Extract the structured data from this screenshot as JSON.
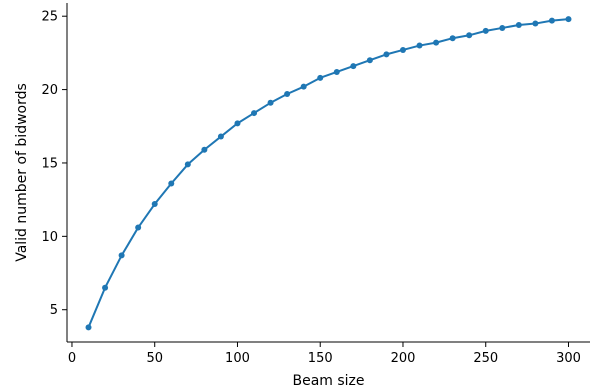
{
  "chart_data": {
    "type": "line",
    "title": "",
    "xlabel": "Beam size",
    "ylabel": "Valid number of bidwords",
    "xlim": [
      -3,
      313
    ],
    "ylim": [
      2.8,
      25.9
    ],
    "xticks": [
      0,
      50,
      100,
      150,
      200,
      250,
      300
    ],
    "yticks": [
      5,
      10,
      15,
      20,
      25
    ],
    "grid": false,
    "legend": "none",
    "series": [
      {
        "color": "#1f77b4",
        "marker": "circle",
        "x": [
          10,
          20,
          30,
          40,
          50,
          60,
          70,
          80,
          90,
          100,
          110,
          120,
          130,
          140,
          150,
          160,
          170,
          180,
          190,
          200,
          210,
          220,
          230,
          240,
          250,
          260,
          270,
          280,
          290,
          300
        ],
        "y": [
          3.8,
          6.5,
          8.7,
          10.6,
          12.2,
          13.6,
          14.9,
          15.9,
          16.8,
          17.7,
          18.4,
          19.1,
          19.7,
          20.2,
          20.8,
          21.2,
          21.6,
          22.0,
          22.4,
          22.7,
          23.0,
          23.2,
          23.5,
          23.7,
          24.0,
          24.2,
          24.4,
          24.5,
          24.7,
          24.8
        ]
      }
    ]
  }
}
